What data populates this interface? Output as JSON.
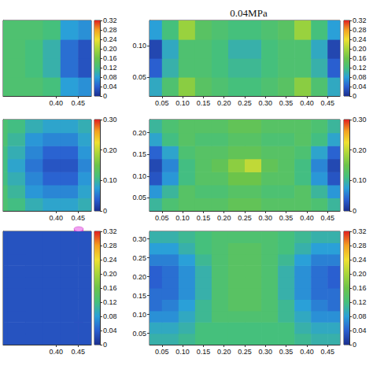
{
  "chart_data": [
    {
      "type": "heatmap",
      "tick_labels": "x",
      "x": [
        0.27,
        0.31,
        0.35,
        0.39,
        0.43,
        0.47
      ],
      "y": [
        0.035,
        0.065,
        0.095,
        0.125
      ],
      "values": [
        [
          0.13,
          0.13,
          0.13,
          0.12,
          0.08,
          0.07
        ],
        [
          0.13,
          0.13,
          0.12,
          0.1,
          0.05,
          0.03
        ],
        [
          0.13,
          0.13,
          0.12,
          0.1,
          0.05,
          0.03
        ],
        [
          0.13,
          0.13,
          0.13,
          0.12,
          0.08,
          0.07
        ]
      ],
      "xlim": [
        0.28,
        0.48
      ],
      "xticks": [
        {
          "value": 0.4,
          "label": "0.40"
        },
        0.45
      ],
      "ylim": [
        0.02,
        0.14
      ],
      "zlim": [
        0,
        0.32
      ],
      "zticks": [
        0,
        0.04,
        0.08,
        0.12,
        0.16,
        {
          "value": 0.2,
          "label": "0.20"
        },
        0.24,
        0.28,
        0.32
      ]
    },
    {
      "type": "heatmap",
      "title": "0.04MPa",
      "x": [
        0.03,
        0.07,
        0.11,
        0.15,
        0.19,
        0.23,
        0.27,
        0.31,
        0.35,
        0.39,
        0.43,
        0.47
      ],
      "y": [
        0.035,
        0.065,
        0.095,
        0.125
      ],
      "values": [
        [
          0.09,
          0.13,
          0.18,
          0.14,
          0.13,
          0.12,
          0.12,
          0.13,
          0.14,
          0.18,
          0.13,
          0.09
        ],
        [
          0.04,
          0.1,
          0.13,
          0.13,
          0.12,
          0.11,
          0.11,
          0.12,
          0.13,
          0.13,
          0.1,
          0.04
        ],
        [
          0.02,
          0.09,
          0.13,
          0.13,
          0.12,
          0.1,
          0.1,
          0.12,
          0.13,
          0.13,
          0.09,
          0.02
        ],
        [
          0.08,
          0.12,
          0.19,
          0.14,
          0.13,
          0.12,
          0.12,
          0.13,
          0.14,
          0.19,
          0.12,
          0.08
        ]
      ],
      "xlim": [
        0.02,
        0.48
      ],
      "xticks": [
        0.05,
        {
          "value": 0.1,
          "label": "0.10"
        },
        0.15,
        {
          "value": 0.2,
          "label": "0.20"
        },
        0.25,
        {
          "value": 0.3,
          "label": "0.30"
        },
        0.35,
        {
          "value": 0.4,
          "label": "0.40"
        },
        0.45
      ],
      "ylim": [
        0.02,
        0.14
      ],
      "yticks": [
        0.05,
        {
          "value": 0.1,
          "label": "0.10"
        }
      ],
      "zlim": [
        0,
        0.32
      ],
      "zticks": [
        0,
        0.04,
        0.08,
        0.12,
        0.16,
        {
          "value": 0.2,
          "label": "0.20"
        },
        0.24,
        0.28,
        0.32
      ]
    },
    {
      "type": "heatmap",
      "tick_labels": "x",
      "x": [
        0.27,
        0.31,
        0.35,
        0.39,
        0.43,
        0.47
      ],
      "y": [
        0.035,
        0.065,
        0.095,
        0.125,
        0.155,
        0.185,
        0.215
      ],
      "values": [
        [
          0.12,
          0.11,
          0.09,
          0.08,
          0.08,
          0.09
        ],
        [
          0.12,
          0.1,
          0.07,
          0.06,
          0.06,
          0.08
        ],
        [
          0.11,
          0.09,
          0.06,
          0.04,
          0.04,
          0.07
        ],
        [
          0.11,
          0.08,
          0.05,
          0.03,
          0.03,
          0.06
        ],
        [
          0.11,
          0.09,
          0.06,
          0.04,
          0.04,
          0.07
        ],
        [
          0.12,
          0.1,
          0.07,
          0.06,
          0.06,
          0.08
        ],
        [
          0.12,
          0.11,
          0.09,
          0.08,
          0.08,
          0.09
        ]
      ],
      "xlim": [
        0.28,
        0.48
      ],
      "xticks": [
        {
          "value": 0.4,
          "label": "0.40"
        },
        0.45
      ],
      "ylim": [
        0.02,
        0.23
      ],
      "zlim": [
        0,
        0.3
      ],
      "zticks": [
        0,
        {
          "value": 0.1,
          "label": "0.10"
        },
        {
          "value": 0.2,
          "label": "0.20"
        },
        {
          "value": 0.3,
          "label": "0.30"
        }
      ]
    },
    {
      "type": "heatmap",
      "x": [
        0.03,
        0.07,
        0.11,
        0.15,
        0.19,
        0.23,
        0.27,
        0.31,
        0.35,
        0.39,
        0.43,
        0.47
      ],
      "y": [
        0.035,
        0.065,
        0.095,
        0.125,
        0.155,
        0.185,
        0.215
      ],
      "values": [
        [
          0.1,
          0.12,
          0.13,
          0.13,
          0.13,
          0.14,
          0.14,
          0.13,
          0.13,
          0.13,
          0.12,
          0.1
        ],
        [
          0.07,
          0.1,
          0.13,
          0.12,
          0.12,
          0.13,
          0.13,
          0.12,
          0.12,
          0.13,
          0.1,
          0.07
        ],
        [
          0.03,
          0.07,
          0.11,
          0.13,
          0.13,
          0.15,
          0.15,
          0.13,
          0.13,
          0.11,
          0.07,
          0.03
        ],
        [
          0.02,
          0.06,
          0.11,
          0.13,
          0.14,
          0.17,
          0.2,
          0.14,
          0.13,
          0.11,
          0.06,
          0.02
        ],
        [
          0.04,
          0.08,
          0.12,
          0.13,
          0.13,
          0.14,
          0.14,
          0.13,
          0.13,
          0.12,
          0.08,
          0.04
        ],
        [
          0.08,
          0.11,
          0.13,
          0.12,
          0.12,
          0.13,
          0.13,
          0.12,
          0.12,
          0.13,
          0.11,
          0.08
        ],
        [
          0.1,
          0.12,
          0.13,
          0.13,
          0.13,
          0.14,
          0.14,
          0.13,
          0.13,
          0.13,
          0.12,
          0.1
        ]
      ],
      "xlim": [
        0.02,
        0.48
      ],
      "xticks": [
        0.05,
        {
          "value": 0.1,
          "label": "0.10"
        },
        0.15,
        {
          "value": 0.2,
          "label": "0.20"
        },
        0.25,
        {
          "value": 0.3,
          "label": "0.30"
        },
        0.35,
        {
          "value": 0.4,
          "label": "0.40"
        },
        0.45
      ],
      "ylim": [
        0.02,
        0.23
      ],
      "yticks": [
        0.05,
        {
          "value": 0.1,
          "label": "0.10"
        },
        0.15,
        {
          "value": 0.2,
          "label": "0.20"
        }
      ],
      "zlim": [
        0,
        0.3
      ],
      "zticks": [
        0,
        {
          "value": 0.1,
          "label": "0.10"
        },
        {
          "value": 0.2,
          "label": "0.20"
        },
        {
          "value": 0.3,
          "label": "0.30"
        }
      ]
    },
    {
      "type": "heatmap",
      "tick_labels": "x",
      "x": [
        0.27,
        0.31,
        0.35,
        0.39,
        0.43,
        0.47
      ],
      "y": [
        0.035,
        0.065,
        0.095,
        0.125,
        0.155,
        0.185,
        0.215,
        0.245,
        0.275,
        0.305
      ],
      "values": [
        [
          0.03,
          0.03,
          0.03,
          0.03,
          0.03,
          0.03
        ],
        [
          0.03,
          0.03,
          0.03,
          0.03,
          0.03,
          0.03
        ],
        [
          0.03,
          0.03,
          0.03,
          0.03,
          0.03,
          0.03
        ],
        [
          0.03,
          0.03,
          0.03,
          0.03,
          0.03,
          0.03
        ],
        [
          0.03,
          0.03,
          0.03,
          0.03,
          0.03,
          0.03
        ],
        [
          0.03,
          0.03,
          0.03,
          0.03,
          0.03,
          0.03
        ],
        [
          0.03,
          0.03,
          0.03,
          0.03,
          0.03,
          0.03
        ],
        [
          0.03,
          0.03,
          0.03,
          0.03,
          0.03,
          0.03
        ],
        [
          0.03,
          0.03,
          0.03,
          0.03,
          0.03,
          0.03
        ],
        [
          0.03,
          0.03,
          0.03,
          0.03,
          0.03,
          0.03
        ]
      ],
      "xlim": [
        0.28,
        0.48
      ],
      "xticks": [
        {
          "value": 0.4,
          "label": "0.40"
        },
        0.45
      ],
      "ylim": [
        0.02,
        0.32
      ],
      "zlim": [
        0,
        0.32
      ],
      "zticks": [
        0,
        0.04,
        0.08,
        0.12,
        0.16,
        {
          "value": 0.2,
          "label": "0.20"
        },
        0.24,
        0.28,
        0.32
      ]
    },
    {
      "type": "heatmap",
      "x": [
        0.03,
        0.07,
        0.11,
        0.15,
        0.19,
        0.23,
        0.27,
        0.31,
        0.35,
        0.39,
        0.43,
        0.47
      ],
      "y": [
        0.035,
        0.065,
        0.095,
        0.125,
        0.155,
        0.185,
        0.215,
        0.245,
        0.275,
        0.305
      ],
      "values": [
        [
          0.1,
          0.1,
          0.11,
          0.12,
          0.12,
          0.12,
          0.12,
          0.12,
          0.12,
          0.11,
          0.1,
          0.1
        ],
        [
          0.09,
          0.09,
          0.1,
          0.12,
          0.12,
          0.12,
          0.12,
          0.12,
          0.12,
          0.1,
          0.09,
          0.09
        ],
        [
          0.07,
          0.07,
          0.09,
          0.11,
          0.13,
          0.13,
          0.13,
          0.13,
          0.11,
          0.09,
          0.07,
          0.07
        ],
        [
          0.05,
          0.06,
          0.08,
          0.11,
          0.13,
          0.14,
          0.14,
          0.13,
          0.11,
          0.08,
          0.06,
          0.05
        ],
        [
          0.05,
          0.05,
          0.07,
          0.1,
          0.13,
          0.14,
          0.14,
          0.13,
          0.1,
          0.07,
          0.05,
          0.05
        ],
        [
          0.04,
          0.05,
          0.07,
          0.1,
          0.13,
          0.14,
          0.14,
          0.13,
          0.1,
          0.07,
          0.05,
          0.04
        ],
        [
          0.04,
          0.05,
          0.07,
          0.1,
          0.13,
          0.14,
          0.14,
          0.13,
          0.1,
          0.07,
          0.05,
          0.04
        ],
        [
          0.06,
          0.06,
          0.08,
          0.11,
          0.13,
          0.14,
          0.14,
          0.13,
          0.11,
          0.08,
          0.06,
          0.06
        ],
        [
          0.08,
          0.08,
          0.1,
          0.12,
          0.13,
          0.14,
          0.14,
          0.13,
          0.12,
          0.1,
          0.08,
          0.08
        ],
        [
          0.1,
          0.1,
          0.11,
          0.12,
          0.13,
          0.13,
          0.13,
          0.13,
          0.12,
          0.11,
          0.1,
          0.1
        ]
      ],
      "xlim": [
        0.02,
        0.48
      ],
      "xticks": [
        0.05,
        {
          "value": 0.1,
          "label": "0.10"
        },
        0.15,
        {
          "value": 0.2,
          "label": "0.20"
        },
        0.25,
        {
          "value": 0.3,
          "label": "0.30"
        },
        0.35,
        {
          "value": 0.4,
          "label": "0.40"
        },
        0.45
      ],
      "ylim": [
        0.02,
        0.32
      ],
      "yticks": [
        0.05,
        {
          "value": 0.1,
          "label": "0.10"
        },
        0.15,
        {
          "value": 0.2,
          "label": "0.20"
        },
        0.25,
        {
          "value": 0.3,
          "label": "0.30"
        }
      ],
      "zlim": [
        0,
        0.32
      ],
      "zticks": [
        0,
        0.04,
        0.08,
        0.12,
        0.16,
        {
          "value": 0.2,
          "label": "0.20"
        },
        0.24,
        0.28,
        0.32
      ]
    }
  ]
}
